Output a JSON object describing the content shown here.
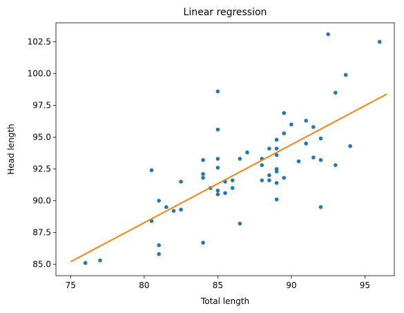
{
  "chart_data": {
    "type": "scatter",
    "title": "Linear regression",
    "xlabel": "Total length",
    "ylabel": "Head length",
    "xlim": [
      74.0,
      97.0
    ],
    "ylim": [
      84.1,
      104.0
    ],
    "xticks": [
      75,
      80,
      85,
      90,
      95
    ],
    "xtick_labels": [
      "75",
      "80",
      "85",
      "90",
      "95"
    ],
    "yticks": [
      85.0,
      87.5,
      90.0,
      92.5,
      95.0,
      97.5,
      100.0,
      102.5
    ],
    "ytick_labels": [
      "85.0",
      "87.5",
      "90.0",
      "92.5",
      "95.0",
      "97.5",
      "100.0",
      "102.5"
    ],
    "grid": false,
    "colors": {
      "points": "#1f77b4",
      "fit_line": "#ff7f0e"
    },
    "series": [
      {
        "kind": "scatter",
        "points": [
          [
            76.0,
            85.1
          ],
          [
            77.0,
            85.3
          ],
          [
            80.5,
            92.4
          ],
          [
            80.5,
            88.4
          ],
          [
            81.0,
            90.0
          ],
          [
            81.0,
            86.5
          ],
          [
            81.0,
            85.8
          ],
          [
            81.5,
            89.5
          ],
          [
            82.0,
            89.2
          ],
          [
            82.5,
            91.5
          ],
          [
            82.5,
            89.3
          ],
          [
            84.0,
            93.2
          ],
          [
            84.0,
            92.1
          ],
          [
            84.0,
            91.8
          ],
          [
            84.0,
            86.7
          ],
          [
            84.5,
            91.0
          ],
          [
            85.0,
            98.6
          ],
          [
            85.0,
            95.6
          ],
          [
            85.0,
            93.3
          ],
          [
            85.0,
            92.6
          ],
          [
            85.0,
            90.8
          ],
          [
            85.0,
            90.5
          ],
          [
            85.5,
            91.5
          ],
          [
            85.5,
            90.6
          ],
          [
            86.0,
            91.6
          ],
          [
            86.0,
            91.0
          ],
          [
            86.5,
            93.3
          ],
          [
            86.5,
            88.2
          ],
          [
            87.0,
            93.8
          ],
          [
            88.0,
            93.3
          ],
          [
            88.0,
            92.8
          ],
          [
            88.0,
            91.6
          ],
          [
            88.5,
            94.1
          ],
          [
            88.5,
            92.0
          ],
          [
            88.5,
            91.6
          ],
          [
            89.0,
            94.8
          ],
          [
            89.0,
            94.1
          ],
          [
            89.0,
            93.6
          ],
          [
            89.0,
            92.5
          ],
          [
            89.0,
            92.3
          ],
          [
            89.0,
            91.4
          ],
          [
            89.0,
            90.1
          ],
          [
            89.5,
            96.9
          ],
          [
            89.5,
            95.3
          ],
          [
            89.5,
            91.8
          ],
          [
            90.0,
            96.0
          ],
          [
            90.5,
            93.1
          ],
          [
            91.0,
            96.3
          ],
          [
            91.0,
            94.5
          ],
          [
            91.5,
            95.8
          ],
          [
            91.5,
            93.4
          ],
          [
            92.0,
            94.9
          ],
          [
            92.0,
            93.2
          ],
          [
            92.0,
            89.5
          ],
          [
            92.5,
            103.1
          ],
          [
            93.0,
            98.5
          ],
          [
            93.0,
            92.8
          ],
          [
            93.7,
            99.9
          ],
          [
            94.0,
            94.3
          ],
          [
            96.0,
            102.5
          ]
        ]
      },
      {
        "kind": "line",
        "points": [
          [
            75.0,
            85.2
          ],
          [
            96.5,
            98.4
          ]
        ]
      }
    ]
  }
}
